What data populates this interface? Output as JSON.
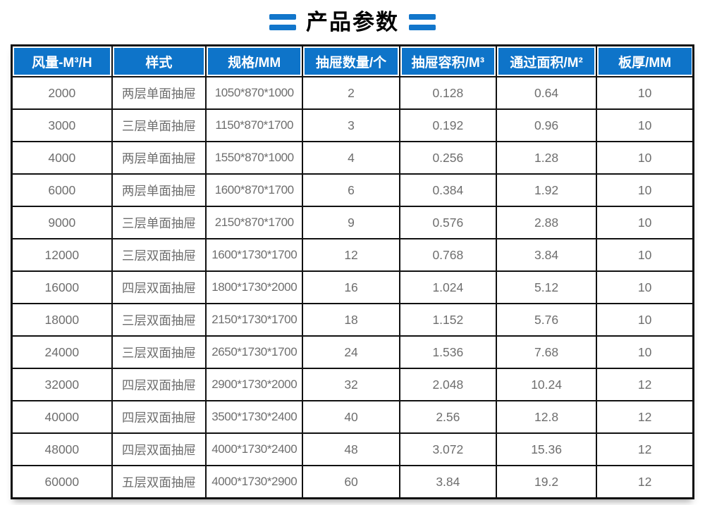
{
  "title": "产品参数",
  "icons": {
    "title_left": "double-bar-equals",
    "title_right": "double-bar-equals"
  },
  "colors": {
    "header_bg": "#0e74c9",
    "accent_blue": "#1276cb",
    "border": "#111111",
    "cell_text": "#6e6e6e",
    "title_text": "#000000"
  },
  "table": {
    "headers": [
      "风量-M³/H",
      "样式",
      "规格/MM",
      "抽屉数量/个",
      "抽屉容积/M³",
      "通过面积/M²",
      "板厚/MM"
    ],
    "column_keys": [
      "airflow",
      "style",
      "spec",
      "drawer-count",
      "drawer-volume",
      "pass-area",
      "plate-thickness"
    ],
    "rows": [
      [
        "2000",
        "两层单面抽屉",
        "1050*870*1000",
        "2",
        "0.128",
        "0.64",
        "10"
      ],
      [
        "3000",
        "三层单面抽屉",
        "1150*870*1700",
        "3",
        "0.192",
        "0.96",
        "10"
      ],
      [
        "4000",
        "两层单面抽屉",
        "1550*870*1000",
        "4",
        "0.256",
        "1.28",
        "10"
      ],
      [
        "6000",
        "两层单面抽屉",
        "1600*870*1700",
        "6",
        "0.384",
        "1.92",
        "10"
      ],
      [
        "9000",
        "三层单面抽屉",
        "2150*870*1700",
        "9",
        "0.576",
        "2.88",
        "10"
      ],
      [
        "12000",
        "三层双面抽屉",
        "1600*1730*1700",
        "12",
        "0.768",
        "3.84",
        "10"
      ],
      [
        "16000",
        "四层双面抽屉",
        "1800*1730*2000",
        "16",
        "1.024",
        "5.12",
        "10"
      ],
      [
        "18000",
        "三层双面抽屉",
        "2150*1730*1700",
        "18",
        "1.152",
        "5.76",
        "10"
      ],
      [
        "24000",
        "三层双面抽屉",
        "2650*1730*1700",
        "24",
        "1.536",
        "7.68",
        "10"
      ],
      [
        "32000",
        "四层双面抽屉",
        "2900*1730*2000",
        "32",
        "2.048",
        "10.24",
        "12"
      ],
      [
        "40000",
        "四层双面抽屉",
        "3500*1730*2400",
        "40",
        "2.56",
        "12.8",
        "12"
      ],
      [
        "48000",
        "四层双面抽屉",
        "4000*1730*2400",
        "48",
        "3.072",
        "15.36",
        "12"
      ],
      [
        "60000",
        "五层双面抽屉",
        "4000*1730*2900",
        "60",
        "3.84",
        "19.2",
        "12"
      ]
    ]
  }
}
